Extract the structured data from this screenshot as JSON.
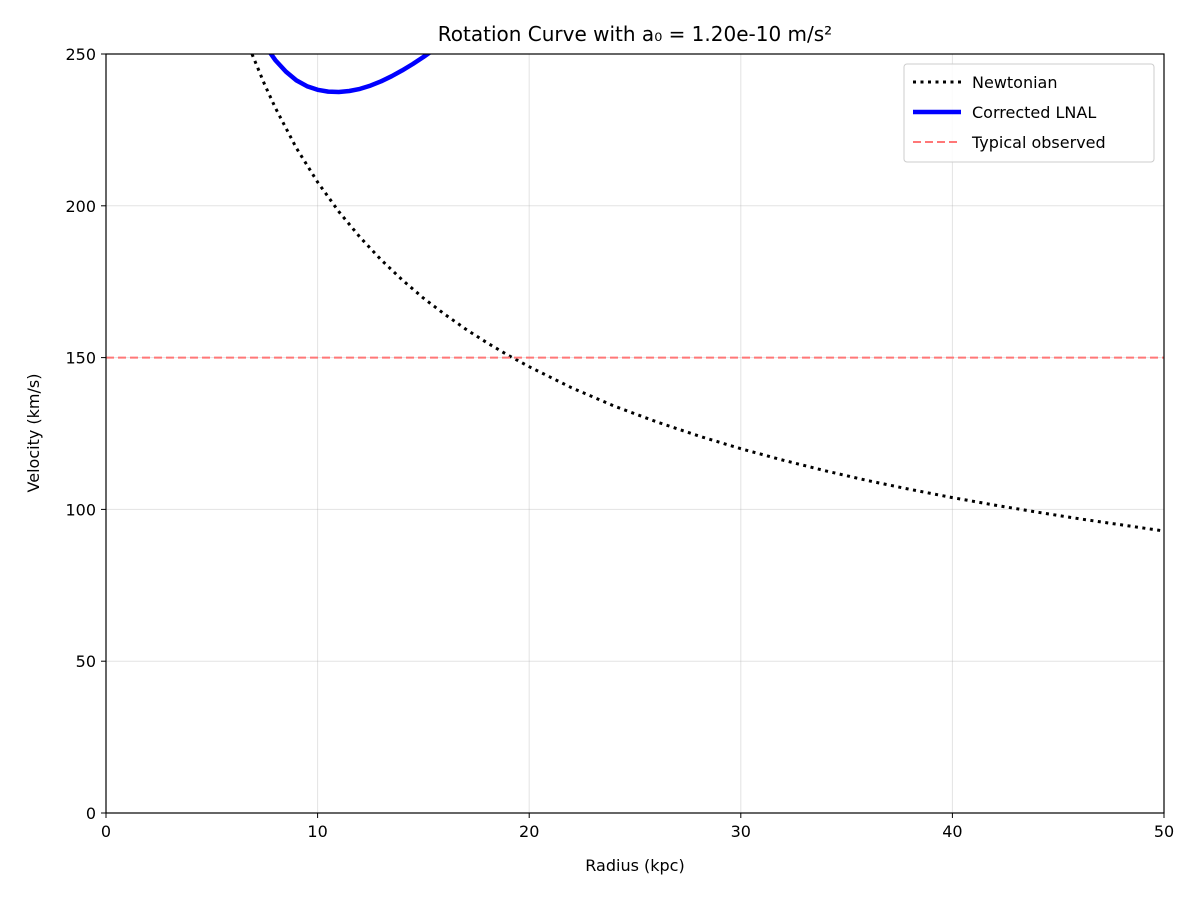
{
  "chart_data": {
    "type": "line",
    "title": "Rotation Curve with a₀ = 1.20e-10 m/s²",
    "xlabel": "Radius (kpc)",
    "ylabel": "Velocity (km/s)",
    "xlim": [
      0,
      50
    ],
    "ylim": [
      0,
      250
    ],
    "xticks": [
      0,
      10,
      20,
      30,
      40,
      50
    ],
    "yticks": [
      0,
      50,
      100,
      150,
      200,
      250
    ],
    "x_tick_labels": [
      "0",
      "10",
      "20",
      "30",
      "40",
      "50"
    ],
    "y_tick_labels": [
      "0",
      "50",
      "100",
      "150",
      "200",
      "250"
    ],
    "grid": true,
    "legend_position": "top-right",
    "series": [
      {
        "name": "Newtonian",
        "color": "#000000",
        "style": "dotted",
        "x": [
          6.9,
          7.5,
          8,
          9,
          10,
          11,
          12,
          13,
          14,
          15,
          16,
          17,
          18,
          19,
          20,
          22,
          24,
          26,
          28,
          30,
          32,
          34,
          36,
          38,
          40,
          42,
          44,
          46,
          48,
          50
        ],
        "y": [
          250,
          239.9,
          232.3,
          219.0,
          207.8,
          198.1,
          189.7,
          182.2,
          175.6,
          169.6,
          164.3,
          159.4,
          154.9,
          150.8,
          147.0,
          140.1,
          134.1,
          128.9,
          124.2,
          120.0,
          116.2,
          112.7,
          109.5,
          106.6,
          103.9,
          101.4,
          99.1,
          96.9,
          94.9,
          92.9
        ]
      },
      {
        "name": "Corrected LNAL",
        "color": "#0000ff",
        "style": "solid",
        "x": [
          7.7,
          8.0,
          8.5,
          9.0,
          9.5,
          10.0,
          10.5,
          11.0,
          11.5,
          12.0,
          12.5,
          13.0,
          13.5,
          14.0,
          14.5,
          15.0,
          15.4
        ],
        "y": [
          251,
          248.0,
          244.2,
          241.3,
          239.4,
          238.2,
          237.6,
          237.5,
          237.8,
          238.5,
          239.6,
          241.0,
          242.7,
          244.6,
          246.7,
          249.0,
          251
        ]
      },
      {
        "name": "Typical observed",
        "color": "#ff7777",
        "style": "dashed",
        "x": [
          0,
          50
        ],
        "y": [
          150,
          150
        ]
      }
    ]
  }
}
